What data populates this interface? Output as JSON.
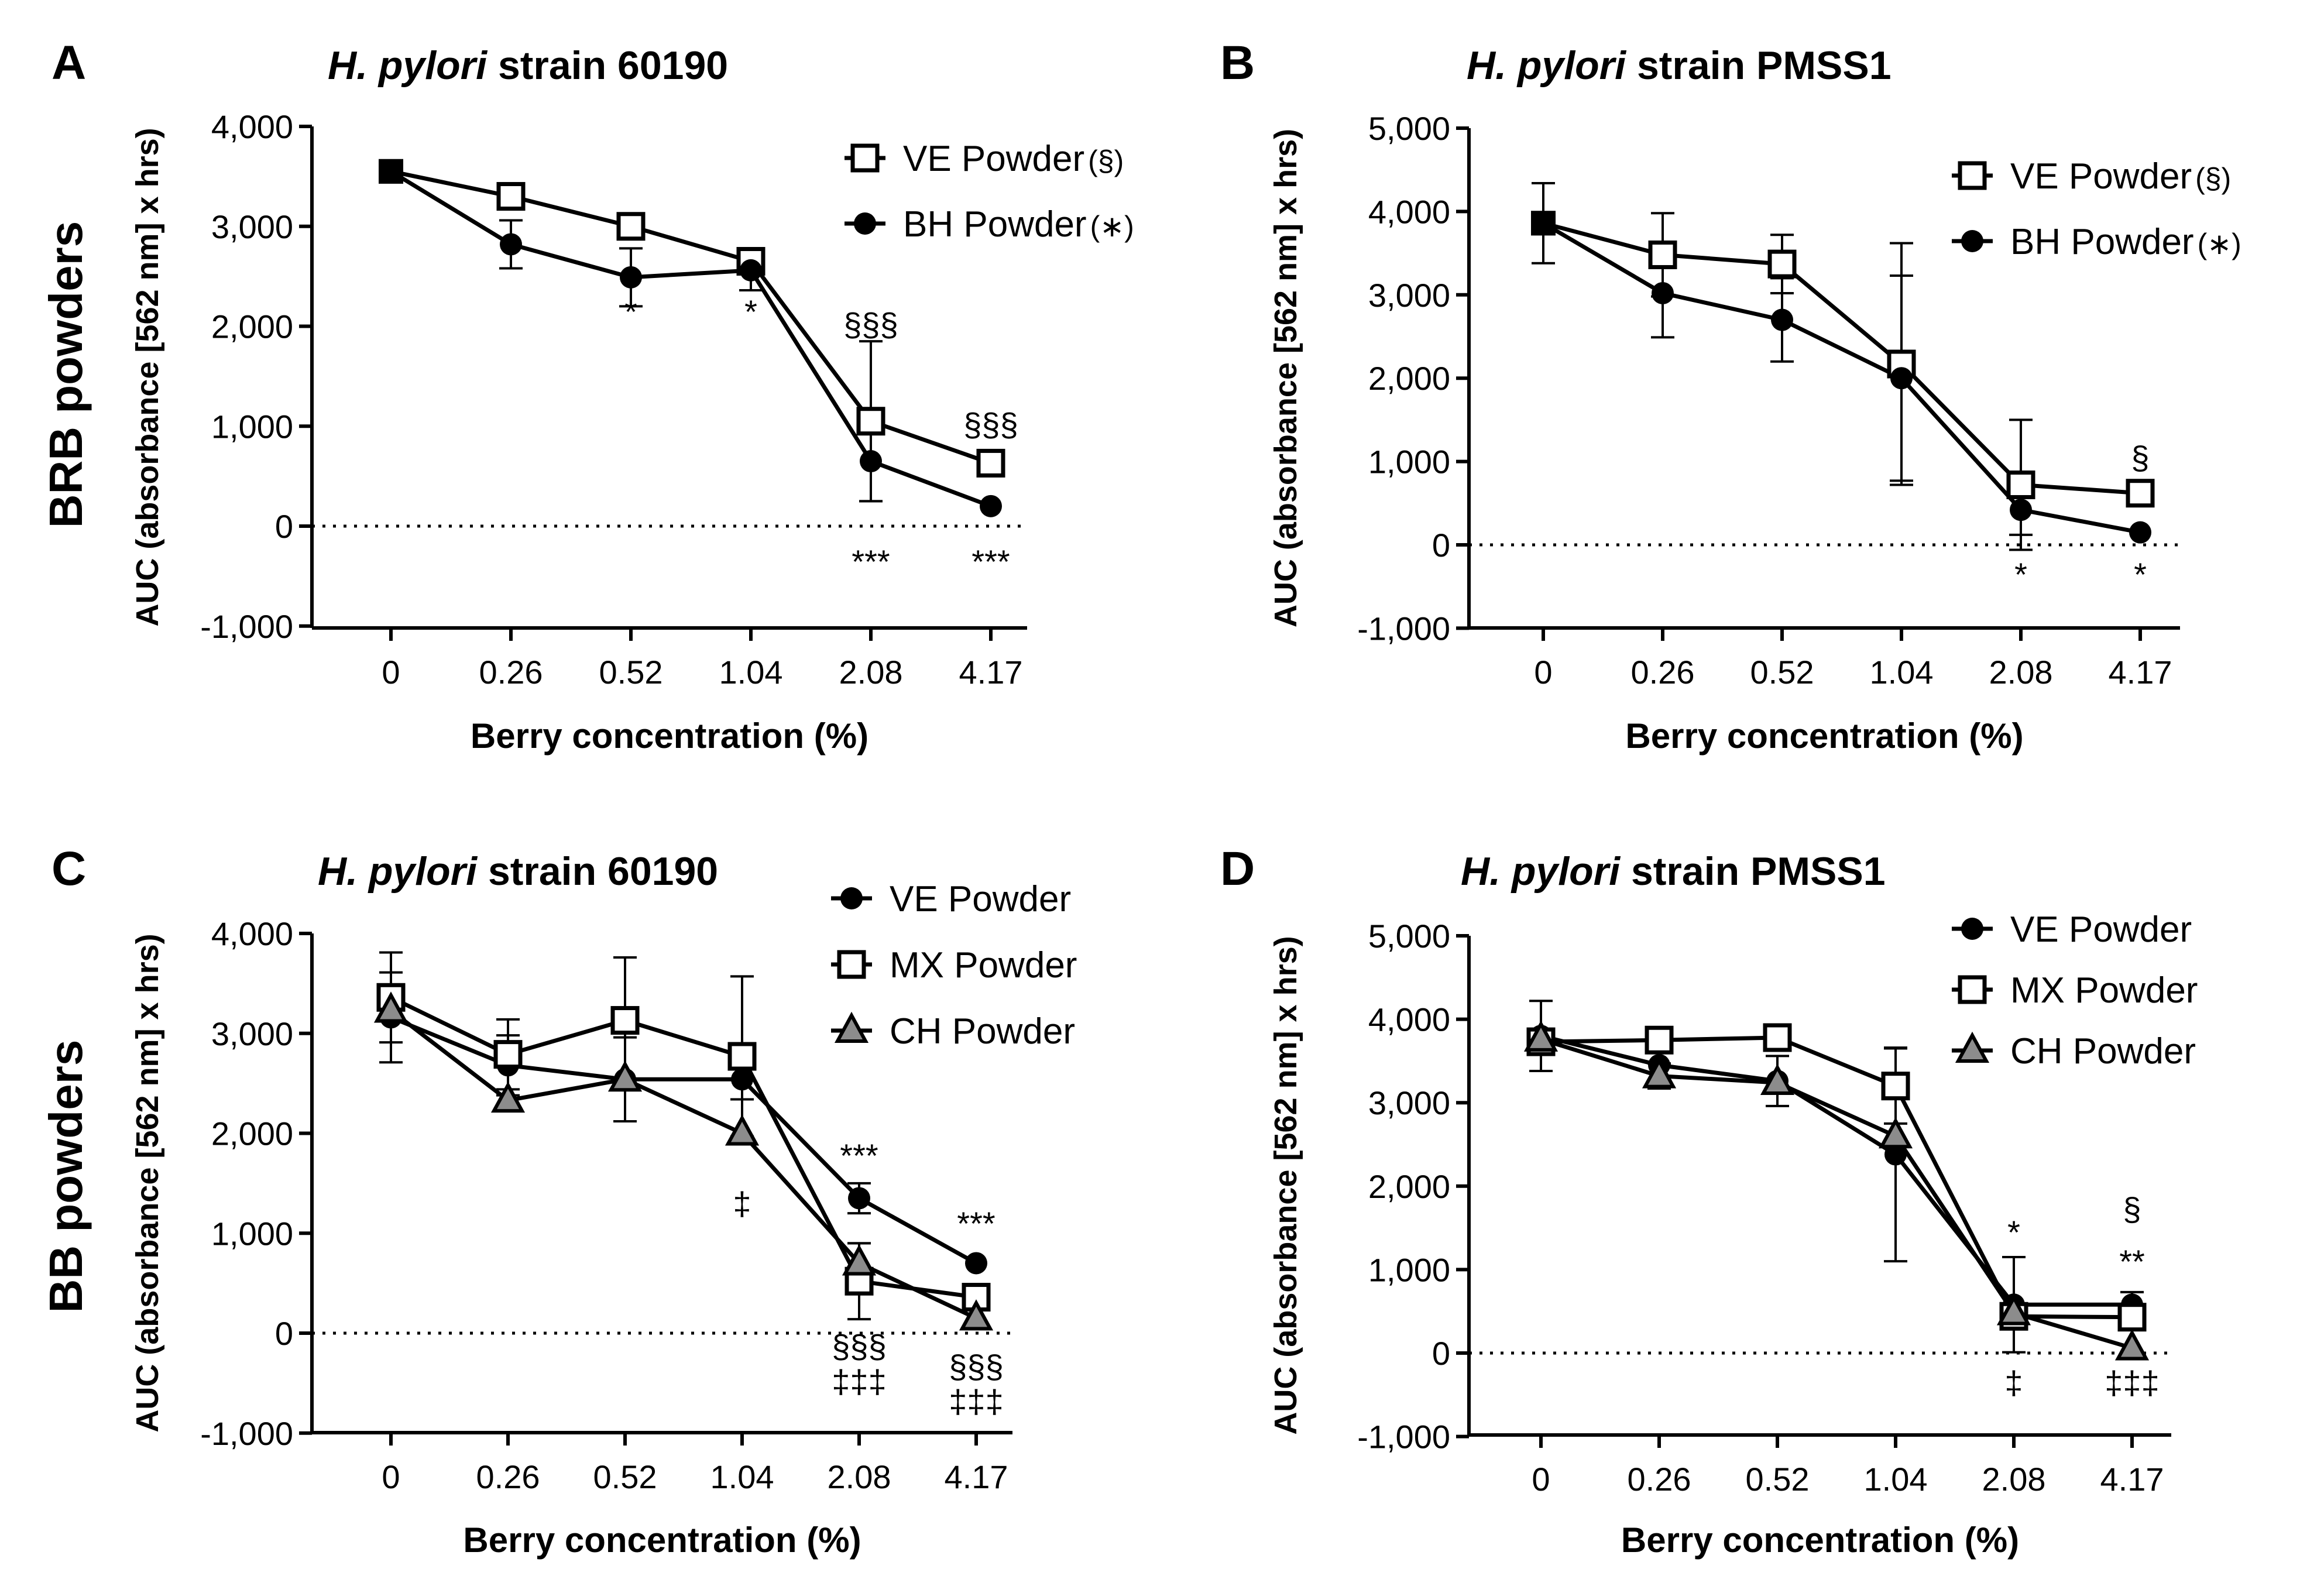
{
  "row_titles": [
    "BRB powders",
    "BB powders"
  ],
  "chart_data": [
    {
      "panel": "A",
      "type": "line",
      "title_italic": "H. pylori",
      "title_rest": " strain 60190",
      "xlabel": "Berry concentration (%)",
      "ylabel": "AUC (absorbance [562 nm] x  hrs)",
      "categories": [
        "0",
        "0.26",
        "0.52",
        "1.04",
        "2.08",
        "4.17"
      ],
      "ylim": [
        -1000,
        4000
      ],
      "yticks": [
        -1000,
        0,
        1000,
        2000,
        3000,
        4000
      ],
      "ytick_labels": [
        "-1,000",
        "0",
        "1,000",
        "2,000",
        "3,000",
        "4,000"
      ],
      "reference_line": 0,
      "series": [
        {
          "name": "VE Powder",
          "suffix": "(§)",
          "marker": "square-open",
          "values": [
            3550,
            3300,
            3000,
            2650,
            1050,
            630
          ],
          "errors": [
            0,
            0,
            0,
            0,
            800,
            0
          ]
        },
        {
          "name": "BH Powder",
          "suffix": "(∗)",
          "marker": "circle",
          "values": [
            3550,
            2820,
            2490,
            2560,
            650,
            200
          ],
          "errors": [
            0,
            240,
            290,
            200,
            400,
            0
          ]
        }
      ],
      "annotations": [
        {
          "x": "0.52",
          "y": 2150,
          "text": "*"
        },
        {
          "x": "1.04",
          "y": 2150,
          "text": "*"
        },
        {
          "x": "2.08",
          "y": 2020,
          "text": "§§§"
        },
        {
          "x": "4.17",
          "y": 1020,
          "text": "§§§"
        },
        {
          "x": "2.08",
          "y": -350,
          "text": "***"
        },
        {
          "x": "4.17",
          "y": -350,
          "text": "***"
        }
      ]
    },
    {
      "panel": "B",
      "type": "line",
      "title_italic": "H. pylori",
      "title_rest": " strain PMSS1",
      "xlabel": "Berry concentration (%)",
      "ylabel": "AUC (absorbance [562 nm] x  hrs)",
      "categories": [
        "0",
        "0.26",
        "0.52",
        "1.04",
        "2.08",
        "4.17"
      ],
      "ylim": [
        -1000,
        5000
      ],
      "yticks": [
        -1000,
        0,
        1000,
        2000,
        3000,
        4000,
        5000
      ],
      "ytick_labels": [
        "-1,000",
        "0",
        "1,000",
        "2,000",
        "3,000",
        "4,000",
        "5,000"
      ],
      "reference_line": 0,
      "series": [
        {
          "name": "VE Powder",
          "suffix": "(§)",
          "marker": "square-open",
          "values": [
            3860,
            3480,
            3370,
            2170,
            720,
            620
          ],
          "errors": [
            480,
            500,
            350,
            1450,
            780,
            0
          ]
        },
        {
          "name": "BH Powder",
          "suffix": "(∗)",
          "marker": "circle",
          "values": [
            3860,
            3020,
            2700,
            2000,
            420,
            150
          ],
          "errors": [
            0,
            530,
            500,
            1230,
            300,
            0
          ]
        }
      ],
      "annotations": [
        {
          "x": "4.17",
          "y": 1050,
          "text": "§"
        },
        {
          "x": "2.08",
          "y": -350,
          "text": "*"
        },
        {
          "x": "4.17",
          "y": -350,
          "text": "*"
        }
      ]
    },
    {
      "panel": "C",
      "type": "line",
      "title_italic": "H. pylori",
      "title_rest": " strain 60190",
      "xlabel": "Berry concentration (%)",
      "ylabel": "AUC (absorbance [562 nm] x  hrs)",
      "categories": [
        "0",
        "0.26",
        "0.52",
        "1.04",
        "2.08",
        "4.17"
      ],
      "ylim": [
        -1000,
        4000
      ],
      "yticks": [
        -1000,
        0,
        1000,
        2000,
        3000,
        4000
      ],
      "ytick_labels": [
        "-1,000",
        "0",
        "1,000",
        "2,000",
        "3,000",
        "4,000"
      ],
      "reference_line": 0,
      "series": [
        {
          "name": "VE Powder",
          "marker": "circle",
          "values": [
            3160,
            2680,
            2540,
            2540,
            1350,
            700
          ],
          "errors": [
            450,
            300,
            420,
            200,
            150,
            0
          ]
        },
        {
          "name": "MX Powder",
          "marker": "square-open",
          "values": [
            3360,
            2790,
            3130,
            2770,
            520,
            360
          ],
          "errors": [
            450,
            350,
            630,
            800,
            380,
            0
          ]
        },
        {
          "name": "CH Powder",
          "marker": "triangle",
          "values": [
            3230,
            2330,
            2540,
            2000,
            700,
            150
          ],
          "errors": [
            0,
            0,
            0,
            0,
            200,
            0
          ]
        }
      ],
      "annotations": [
        {
          "x": "1.04",
          "y": 1300,
          "text": "‡"
        },
        {
          "x": "2.08",
          "y": 1780,
          "text": "***"
        },
        {
          "x": "4.17",
          "y": 1100,
          "text": "***"
        },
        {
          "x": "2.08",
          "y": -130,
          "text": "§§§"
        },
        {
          "x": "2.08",
          "y": -480,
          "text": "‡‡‡"
        },
        {
          "x": "4.17",
          "y": -330,
          "text": "§§§"
        },
        {
          "x": "4.17",
          "y": -680,
          "text": "‡‡‡"
        }
      ]
    },
    {
      "panel": "D",
      "type": "line",
      "title_italic": "H. pylori",
      "title_rest": " strain PMSS1",
      "xlabel": "Berry concentration (%)",
      "ylabel": "AUC (absorbance [562 nm] x  hrs)",
      "categories": [
        "0",
        "0.26",
        "0.52",
        "1.04",
        "2.08",
        "4.17"
      ],
      "ylim": [
        -1000,
        5000
      ],
      "yticks": [
        -1000,
        0,
        1000,
        2000,
        3000,
        4000,
        5000
      ],
      "ytick_labels": [
        "-1,000",
        "0",
        "1,000",
        "2,000",
        "3,000",
        "4,000",
        "5,000"
      ],
      "reference_line": 0,
      "series": [
        {
          "name": "VE Powder",
          "marker": "circle",
          "values": [
            3800,
            3450,
            3260,
            2380,
            580,
            580
          ],
          "errors": [
            420,
            0,
            300,
            1280,
            570,
            150
          ]
        },
        {
          "name": "MX Powder",
          "marker": "square-open",
          "values": [
            3730,
            3750,
            3780,
            3200,
            440,
            430
          ],
          "errors": [
            0,
            0,
            0,
            450,
            0,
            0
          ]
        },
        {
          "name": "CH Powder",
          "marker": "triangle",
          "values": [
            3760,
            3320,
            3240,
            2600,
            480,
            60
          ],
          "errors": [
            0,
            150,
            0,
            0,
            0,
            0
          ]
        }
      ],
      "annotations": [
        {
          "x": "4.17",
          "y": 1730,
          "text": "§"
        },
        {
          "x": "2.08",
          "y": 1450,
          "text": "*"
        },
        {
          "x": "4.17",
          "y": 1100,
          "text": "**"
        },
        {
          "x": "2.08",
          "y": -350,
          "text": "‡"
        },
        {
          "x": "4.17",
          "y": -350,
          "text": "‡‡‡"
        }
      ]
    }
  ]
}
